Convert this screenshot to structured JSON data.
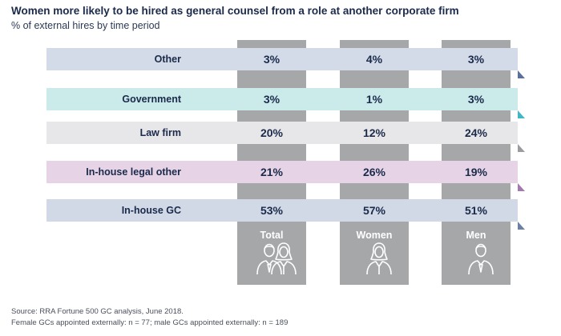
{
  "title": "Women more likely to be hired as general counsel from a role at another corporate firm",
  "subtitle": "% of external hires by time period",
  "chart_data": {
    "type": "table",
    "columns": [
      "Total",
      "Women",
      "Men"
    ],
    "rows": [
      {
        "label": "Other",
        "values": [
          "3%",
          "4%",
          "3%"
        ],
        "color": "#d3dbe8",
        "fold": "#5a6f9a"
      },
      {
        "label": "Government",
        "values": [
          "3%",
          "1%",
          "3%"
        ],
        "color": "#cbeaea",
        "fold": "#3fb7c4"
      },
      {
        "label": "Law firm",
        "values": [
          "20%",
          "12%",
          "24%"
        ],
        "color": "#e7e7e9",
        "fold": "#9b9ca0"
      },
      {
        "label": "In-house legal other",
        "values": [
          "21%",
          "26%",
          "19%"
        ],
        "color": "#e6d4e6",
        "fold": "#a27aaf"
      },
      {
        "label": "In-house GC",
        "values": [
          "53%",
          "57%",
          "51%"
        ],
        "color": "#d1d9e7",
        "fold": "#6b7fa7"
      }
    ]
  },
  "icons": {
    "total": "two-people-icon",
    "women": "woman-icon",
    "men": "man-icon"
  },
  "source": {
    "line1": "Source: RRA Fortune 500 GC analysis, June 2018.",
    "line2": "Female GCs appointed externally: n = 77; male GCs appointed externally: n = 189"
  }
}
